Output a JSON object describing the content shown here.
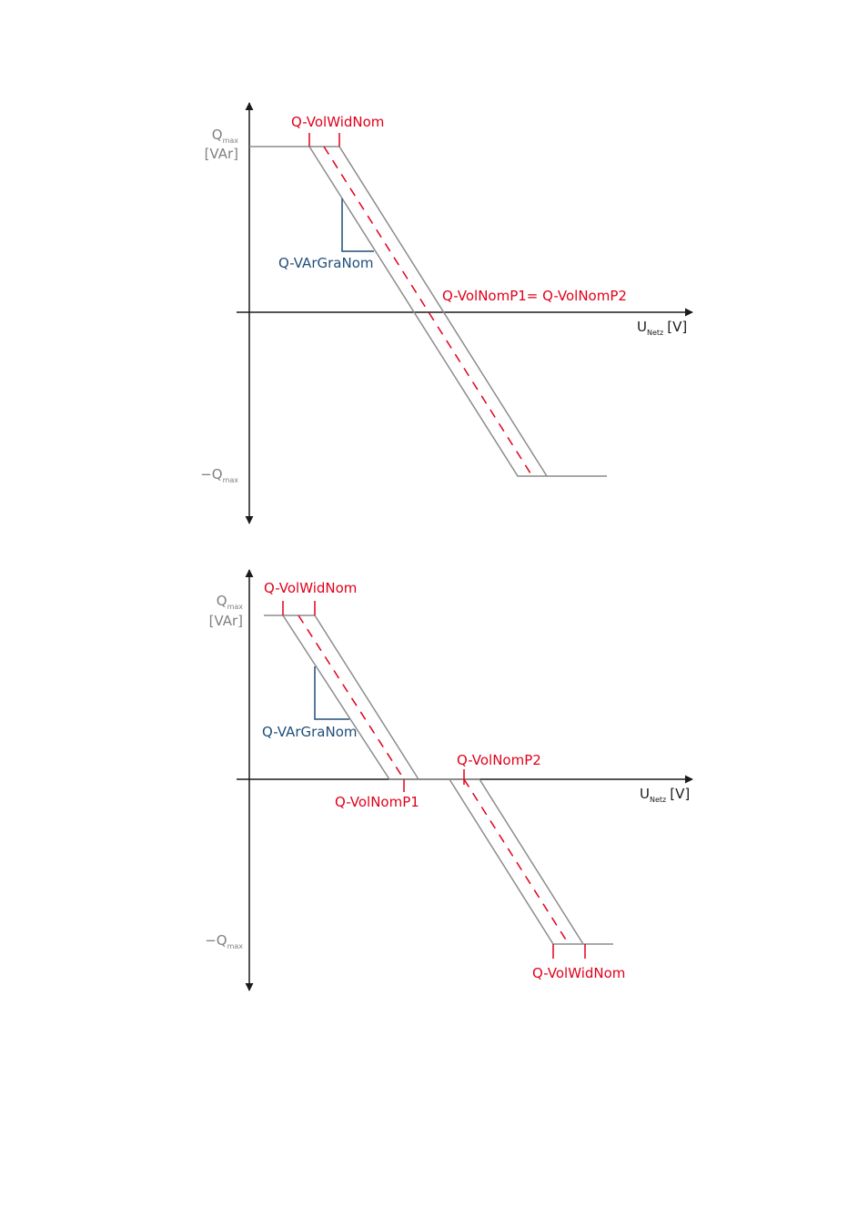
{
  "diagrams": [
    {
      "y_max_label": {
        "symbol": "Q",
        "subscript": "max",
        "unit": "[VAr]"
      },
      "y_min_label": {
        "symbol": "−Q",
        "subscript": "max"
      },
      "x_axis_label": {
        "symbol": "U",
        "subscript": "Netz",
        "unit": "[V]"
      },
      "annotations": [
        "Q-VolWidNom",
        "Q-VArGraNom",
        "Q-VolNomP1= Q-VolNomP2"
      ]
    },
    {
      "y_max_label": {
        "symbol": "Q",
        "subscript": "max",
        "unit": "[VAr]"
      },
      "y_min_label": {
        "symbol": "−Q",
        "subscript": "max"
      },
      "x_axis_label": {
        "symbol": "U",
        "subscript": "Netz",
        "unit": "[V]"
      },
      "annotations": [
        "Q-VolWidNom",
        "Q-VArGraNom",
        "Q-VolNomP2",
        "Q-VolNomP1",
        "Q-VolWidNom"
      ]
    }
  ]
}
